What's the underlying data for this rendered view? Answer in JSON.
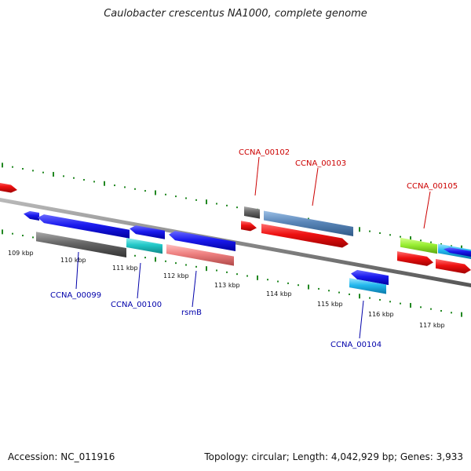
{
  "title": "Caulobacter crescentus NA1000, complete genome",
  "footer": {
    "accession": "Accession: NC_011916",
    "summary": "Topology: circular; Length: 4,042,929 bp; Genes: 3,933"
  },
  "scale_labels": [
    "109 kbp",
    "110 kbp",
    "111 kbp",
    "112 kbp",
    "113 kbp",
    "114 kbp",
    "115 kbp",
    "116 kbp",
    "117 kbp"
  ],
  "gene_labels": [
    {
      "text": "CCNA_00102",
      "color": "#cc0000"
    },
    {
      "text": "CCNA_00103",
      "color": "#cc0000"
    },
    {
      "text": "CCNA_00105",
      "color": "#cc0000"
    },
    {
      "text": "CCNA_00099",
      "color": "#0000aa"
    },
    {
      "text": "CCNA_00100",
      "color": "#0000aa"
    },
    {
      "text": "rsmB",
      "color": "#0000aa"
    },
    {
      "text": "CCNA_00104",
      "color": "#0000aa"
    }
  ],
  "feature_colors": {
    "blue": "#1a1aee",
    "red": "#ee1111",
    "grey": "#666666",
    "steelblue": "#5a86b8",
    "cyan": "#22c8c8",
    "pink": "#ee8080",
    "lime": "#99ee33",
    "skyblue": "#22b8ee",
    "backbone": "#888888",
    "ticks": "#228822"
  }
}
